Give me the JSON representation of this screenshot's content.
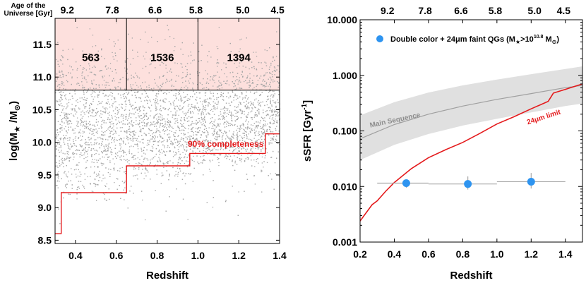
{
  "chart_data": [
    {
      "type": "scatter",
      "panel": "left",
      "title": "",
      "xlabel": "Redshift",
      "ylabel_main": "log(M",
      "ylabel_star": "★",
      "ylabel_mid": " /M",
      "ylabel_sun": "⊙",
      "ylabel_end": ")",
      "top_axis_label_line1": "Age of the",
      "top_axis_label_line2": "Universe [Gyr]",
      "xlim": [
        0.3,
        1.4
      ],
      "ylim": [
        8.45,
        11.9
      ],
      "x_ticks": [
        0.4,
        0.6,
        0.8,
        1.0,
        1.2,
        1.4
      ],
      "x_tick_labels": [
        "0.4",
        "0.6",
        "0.8",
        "1.0",
        "1.2",
        "1.4"
      ],
      "y_ticks": [
        8.5,
        9.0,
        9.5,
        10.0,
        10.5,
        11.0,
        11.5
      ],
      "y_tick_labels": [
        "8.5",
        "9.0",
        "9.5",
        "10.0",
        "10.5",
        "11.0",
        "11.5"
      ],
      "top_ticks": [
        {
          "z": 0.36,
          "label": "9.2"
        },
        {
          "z": 0.58,
          "label": "7.8"
        },
        {
          "z": 0.79,
          "label": "6.6"
        },
        {
          "z": 0.99,
          "label": "5.8"
        },
        {
          "z": 1.22,
          "label": "5.0"
        },
        {
          "z": 1.39,
          "label": "4.5"
        }
      ],
      "mass_cut": 10.8,
      "redshift_bins": [
        {
          "zmin": 0.3,
          "zmax": 0.65,
          "count": "563"
        },
        {
          "zmin": 0.65,
          "zmax": 1.0,
          "count": "1536"
        },
        {
          "zmin": 1.0,
          "zmax": 1.4,
          "count": "1394"
        }
      ],
      "completeness_label": "90% completeness",
      "completeness_curve": [
        [
          0.3,
          8.6
        ],
        [
          0.33,
          8.6
        ],
        [
          0.33,
          9.23
        ],
        [
          0.65,
          9.23
        ],
        [
          0.65,
          9.64
        ],
        [
          0.96,
          9.64
        ],
        [
          0.96,
          9.83
        ],
        [
          1.33,
          9.83
        ],
        [
          1.33,
          10.13
        ],
        [
          1.4,
          10.13
        ]
      ],
      "scatter_description": "dense cloud of galaxies, approx 8.5-11.9 in log mass across z 0.3-1.4",
      "colors": {
        "points": "#a6a6a6",
        "shade": "#fde0dd",
        "completeness": "#e41a1c"
      }
    },
    {
      "type": "line",
      "panel": "right",
      "title": "",
      "xlabel": "Redshift",
      "ylabel_main": "sSFR [Gyr",
      "ylabel_sup": "-1",
      "ylabel_end": "]",
      "xlim": [
        0.2,
        1.5
      ],
      "ylim": [
        0.001,
        10.0
      ],
      "yscale": "log",
      "x_ticks": [
        0.2,
        0.4,
        0.6,
        0.8,
        1.0,
        1.2,
        1.4
      ],
      "x_tick_labels": [
        "0.2",
        "0.4",
        "0.6",
        "0.8",
        "1.0",
        "1.2",
        "1.4"
      ],
      "y_ticks": [
        0.001,
        0.01,
        0.1,
        1.0,
        10.0
      ],
      "y_tick_labels": [
        "0.001",
        "0.010",
        "0.100",
        "1.000",
        "10.000"
      ],
      "top_ticks": [
        {
          "z": 0.36,
          "label": "9.2"
        },
        {
          "z": 0.58,
          "label": "7.8"
        },
        {
          "z": 0.79,
          "label": "6.6"
        },
        {
          "z": 0.99,
          "label": "5.8"
        },
        {
          "z": 1.22,
          "label": "5.0"
        },
        {
          "z": 1.39,
          "label": "4.5"
        }
      ],
      "legend": {
        "label_main": "Double color + 24",
        "label_mu": "μ",
        "label_tail": "m faint QGs (M",
        "label_star": "★",
        "label_gt": ">10",
        "label_exp": "10.8",
        "label_space": " M",
        "label_sun": "⊙",
        "label_end": ")",
        "position": "top-left"
      },
      "main_sequence_label": "Main Sequence",
      "main_sequence": {
        "x": [
          0.2,
          0.4,
          0.6,
          0.8,
          1.0,
          1.2,
          1.4,
          1.5
        ],
        "center": [
          0.072,
          0.13,
          0.2,
          0.28,
          0.37,
          0.47,
          0.6,
          0.66
        ],
        "lower": [
          0.03,
          0.056,
          0.088,
          0.125,
          0.165,
          0.215,
          0.28,
          0.31
        ],
        "upper": [
          0.19,
          0.33,
          0.49,
          0.66,
          0.84,
          1.05,
          1.3,
          1.45
        ]
      },
      "limit_label": "24μm limit",
      "limit_curve": {
        "x": [
          0.2,
          0.27,
          0.3,
          0.35,
          0.4,
          0.5,
          0.6,
          0.7,
          0.8,
          0.9,
          1.0,
          1.1,
          1.2,
          1.3,
          1.33,
          1.4,
          1.5
        ],
        "y": [
          0.0024,
          0.0047,
          0.0055,
          0.0082,
          0.0118,
          0.021,
          0.033,
          0.046,
          0.062,
          0.09,
          0.133,
          0.18,
          0.25,
          0.34,
          0.48,
          0.56,
          0.7
        ]
      },
      "series": [
        {
          "name": "Double color + 24μm faint QGs",
          "x": [
            0.47,
            0.83,
            1.2
          ],
          "y": [
            0.0115,
            0.0111,
            0.0122
          ],
          "xerr_low": [
            0.3,
            0.6,
            1.0
          ],
          "xerr_high": [
            0.6,
            1.0,
            1.4
          ],
          "yerr_low": [
            0.0095,
            0.0088,
            0.0092
          ],
          "yerr_high": [
            0.0134,
            0.0152,
            0.0175
          ]
        }
      ],
      "colors": {
        "points": "#2e94f0",
        "band": "#e0e0e0",
        "ms_line": "#a0a0a0",
        "limit": "#e41a1c",
        "errorbar": "#a8a8a8"
      }
    }
  ]
}
